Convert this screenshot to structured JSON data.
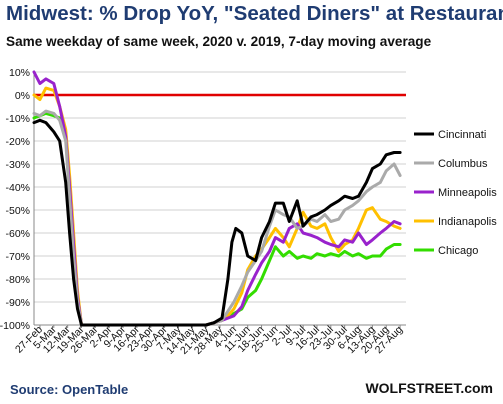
{
  "title": "Midwest: % Drop YoY, \"Seated Diners\" at Restaurants",
  "subtitle": "Same weekday of same week, 2020 v. 2019, 7-day moving average",
  "source": "Source: OpenTable",
  "brand": "WOLFSTREET.com",
  "chart_data": {
    "type": "line",
    "ylim": [
      -100,
      10
    ],
    "yticks": [
      "10%",
      "0%",
      "-10%",
      "-20%",
      "-30%",
      "-40%",
      "-50%",
      "-60%",
      "-70%",
      "-80%",
      "-90%",
      "-100%"
    ],
    "ytick_values": [
      10,
      0,
      -10,
      -20,
      -30,
      -40,
      -50,
      -60,
      -70,
      -80,
      -90,
      -100
    ],
    "xrange": [
      "2020-02-24",
      "2020-08-30"
    ],
    "xticks": [
      "27-Feb",
      "5-Mar",
      "12-Mar",
      "19-Mar",
      "26-Mar",
      "2-Apr",
      "9-Apr",
      "16-Apr",
      "23-Apr",
      "30-Apr",
      "7-May",
      "14-May",
      "21-May",
      "28-May",
      "4-Jun",
      "11-Jun",
      "18-Jun",
      "25-Jun",
      "2-Jul",
      "9-Jul",
      "16-Jul",
      "23-Jul",
      "30-Jul",
      "6-Aug",
      "13-Aug",
      "20-Aug",
      "27-Aug"
    ],
    "xtick_dates": [
      "2020-02-27",
      "2020-03-05",
      "2020-03-12",
      "2020-03-19",
      "2020-03-26",
      "2020-04-02",
      "2020-04-09",
      "2020-04-16",
      "2020-04-23",
      "2020-04-30",
      "2020-05-07",
      "2020-05-14",
      "2020-05-21",
      "2020-05-28",
      "2020-06-04",
      "2020-06-11",
      "2020-06-18",
      "2020-06-25",
      "2020-07-02",
      "2020-07-09",
      "2020-07-16",
      "2020-07-23",
      "2020-07-30",
      "2020-08-06",
      "2020-08-13",
      "2020-08-20",
      "2020-08-27"
    ],
    "reference_line": {
      "y": 0,
      "color": "#e00000"
    },
    "grid": "horizontal",
    "legend_position": "right",
    "series": [
      {
        "name": "Chicago",
        "color": "#33dd00",
        "points": [
          [
            "2020-02-24",
            -10
          ],
          [
            "2020-02-27",
            -9
          ],
          [
            "2020-03-01",
            -8
          ],
          [
            "2020-03-05",
            -9
          ],
          [
            "2020-03-08",
            -10
          ],
          [
            "2020-03-11",
            -18
          ],
          [
            "2020-03-13",
            -40
          ],
          [
            "2020-03-15",
            -65
          ],
          [
            "2020-03-17",
            -88
          ],
          [
            "2020-03-19",
            -100
          ],
          [
            "2020-05-21",
            -100
          ],
          [
            "2020-05-25",
            -99
          ],
          [
            "2020-05-29",
            -98
          ],
          [
            "2020-06-01",
            -96
          ],
          [
            "2020-06-04",
            -95
          ],
          [
            "2020-06-08",
            -93
          ],
          [
            "2020-06-11",
            -88
          ],
          [
            "2020-06-15",
            -85
          ],
          [
            "2020-06-18",
            -80
          ],
          [
            "2020-06-22",
            -72
          ],
          [
            "2020-06-25",
            -66
          ],
          [
            "2020-06-29",
            -70
          ],
          [
            "2020-07-02",
            -68
          ],
          [
            "2020-07-06",
            -71
          ],
          [
            "2020-07-09",
            -70
          ],
          [
            "2020-07-13",
            -71
          ],
          [
            "2020-07-16",
            -69
          ],
          [
            "2020-07-20",
            -70
          ],
          [
            "2020-07-23",
            -69
          ],
          [
            "2020-07-27",
            -70
          ],
          [
            "2020-07-30",
            -68
          ],
          [
            "2020-08-03",
            -70
          ],
          [
            "2020-08-06",
            -69
          ],
          [
            "2020-08-10",
            -71
          ],
          [
            "2020-08-13",
            -70
          ],
          [
            "2020-08-17",
            -70
          ],
          [
            "2020-08-20",
            -67
          ],
          [
            "2020-08-24",
            -65
          ],
          [
            "2020-08-27",
            -65
          ]
        ]
      },
      {
        "name": "Indianapolis",
        "color": "#ffc000",
        "points": [
          [
            "2020-02-24",
            0
          ],
          [
            "2020-02-27",
            -2
          ],
          [
            "2020-03-01",
            3
          ],
          [
            "2020-03-05",
            2
          ],
          [
            "2020-03-08",
            -5
          ],
          [
            "2020-03-11",
            -15
          ],
          [
            "2020-03-13",
            -35
          ],
          [
            "2020-03-15",
            -60
          ],
          [
            "2020-03-17",
            -85
          ],
          [
            "2020-03-19",
            -100
          ],
          [
            "2020-05-21",
            -100
          ],
          [
            "2020-05-25",
            -99
          ],
          [
            "2020-05-29",
            -98
          ],
          [
            "2020-06-01",
            -96
          ],
          [
            "2020-06-04",
            -93
          ],
          [
            "2020-06-08",
            -86
          ],
          [
            "2020-06-11",
            -76
          ],
          [
            "2020-06-15",
            -70
          ],
          [
            "2020-06-18",
            -67
          ],
          [
            "2020-06-22",
            -62
          ],
          [
            "2020-06-25",
            -58
          ],
          [
            "2020-06-29",
            -62
          ],
          [
            "2020-07-02",
            -66
          ],
          [
            "2020-07-06",
            -58
          ],
          [
            "2020-07-09",
            -51
          ],
          [
            "2020-07-13",
            -57
          ],
          [
            "2020-07-16",
            -58
          ],
          [
            "2020-07-20",
            -56
          ],
          [
            "2020-07-23",
            -62
          ],
          [
            "2020-07-27",
            -68
          ],
          [
            "2020-07-30",
            -65
          ],
          [
            "2020-08-03",
            -63
          ],
          [
            "2020-08-06",
            -58
          ],
          [
            "2020-08-10",
            -50
          ],
          [
            "2020-08-13",
            -49
          ],
          [
            "2020-08-17",
            -54
          ],
          [
            "2020-08-20",
            -55
          ],
          [
            "2020-08-24",
            -57
          ],
          [
            "2020-08-27",
            -58
          ]
        ]
      },
      {
        "name": "Minneapolis",
        "color": "#9922cc",
        "points": [
          [
            "2020-02-24",
            10
          ],
          [
            "2020-02-27",
            5
          ],
          [
            "2020-03-01",
            7
          ],
          [
            "2020-03-05",
            5
          ],
          [
            "2020-03-08",
            -5
          ],
          [
            "2020-03-11",
            -18
          ],
          [
            "2020-03-13",
            -40
          ],
          [
            "2020-03-15",
            -65
          ],
          [
            "2020-03-17",
            -88
          ],
          [
            "2020-03-19",
            -100
          ],
          [
            "2020-05-21",
            -100
          ],
          [
            "2020-05-25",
            -99
          ],
          [
            "2020-05-29",
            -98
          ],
          [
            "2020-06-01",
            -97
          ],
          [
            "2020-06-04",
            -96
          ],
          [
            "2020-06-08",
            -92
          ],
          [
            "2020-06-11",
            -85
          ],
          [
            "2020-06-15",
            -78
          ],
          [
            "2020-06-18",
            -73
          ],
          [
            "2020-06-22",
            -68
          ],
          [
            "2020-06-25",
            -62
          ],
          [
            "2020-06-29",
            -64
          ],
          [
            "2020-07-02",
            -58
          ],
          [
            "2020-07-06",
            -56
          ],
          [
            "2020-07-09",
            -60
          ],
          [
            "2020-07-13",
            -61
          ],
          [
            "2020-07-16",
            -62
          ],
          [
            "2020-07-20",
            -64
          ],
          [
            "2020-07-23",
            -65
          ],
          [
            "2020-07-27",
            -66
          ],
          [
            "2020-07-30",
            -63
          ],
          [
            "2020-08-03",
            -64
          ],
          [
            "2020-08-06",
            -60
          ],
          [
            "2020-08-10",
            -65
          ],
          [
            "2020-08-13",
            -63
          ],
          [
            "2020-08-17",
            -60
          ],
          [
            "2020-08-20",
            -58
          ],
          [
            "2020-08-24",
            -55
          ],
          [
            "2020-08-27",
            -56
          ]
        ]
      },
      {
        "name": "Columbus",
        "color": "#aaaaaa",
        "points": [
          [
            "2020-02-24",
            -8
          ],
          [
            "2020-02-27",
            -9
          ],
          [
            "2020-03-01",
            -7
          ],
          [
            "2020-03-05",
            -8
          ],
          [
            "2020-03-08",
            -11
          ],
          [
            "2020-03-11",
            -20
          ],
          [
            "2020-03-13",
            -45
          ],
          [
            "2020-03-15",
            -70
          ],
          [
            "2020-03-17",
            -90
          ],
          [
            "2020-03-19",
            -100
          ],
          [
            "2020-05-21",
            -100
          ],
          [
            "2020-05-25",
            -99
          ],
          [
            "2020-05-29",
            -98
          ],
          [
            "2020-06-01",
            -94
          ],
          [
            "2020-06-04",
            -90
          ],
          [
            "2020-06-08",
            -83
          ],
          [
            "2020-06-11",
            -77
          ],
          [
            "2020-06-15",
            -72
          ],
          [
            "2020-06-18",
            -68
          ],
          [
            "2020-06-22",
            -57
          ],
          [
            "2020-06-25",
            -50
          ],
          [
            "2020-06-29",
            -52
          ],
          [
            "2020-07-02",
            -53
          ],
          [
            "2020-07-06",
            -58
          ],
          [
            "2020-07-09",
            -57
          ],
          [
            "2020-07-13",
            -54
          ],
          [
            "2020-07-16",
            -55
          ],
          [
            "2020-07-20",
            -52
          ],
          [
            "2020-07-23",
            -55
          ],
          [
            "2020-07-27",
            -54
          ],
          [
            "2020-07-30",
            -50
          ],
          [
            "2020-08-03",
            -48
          ],
          [
            "2020-08-06",
            -46
          ],
          [
            "2020-08-10",
            -42
          ],
          [
            "2020-08-13",
            -40
          ],
          [
            "2020-08-17",
            -38
          ],
          [
            "2020-08-20",
            -33
          ],
          [
            "2020-08-24",
            -30
          ],
          [
            "2020-08-27",
            -35
          ]
        ]
      },
      {
        "name": "Cincinnati",
        "color": "#000000",
        "points": [
          [
            "2020-02-24",
            -12
          ],
          [
            "2020-02-27",
            -11
          ],
          [
            "2020-03-01",
            -12
          ],
          [
            "2020-03-05",
            -16
          ],
          [
            "2020-03-08",
            -20
          ],
          [
            "2020-03-11",
            -38
          ],
          [
            "2020-03-13",
            -60
          ],
          [
            "2020-03-15",
            -80
          ],
          [
            "2020-03-17",
            -93
          ],
          [
            "2020-03-19",
            -100
          ],
          [
            "2020-05-21",
            -100
          ],
          [
            "2020-05-25",
            -99
          ],
          [
            "2020-05-29",
            -97
          ],
          [
            "2020-06-01",
            -80
          ],
          [
            "2020-06-03",
            -64
          ],
          [
            "2020-06-05",
            -58
          ],
          [
            "2020-06-08",
            -60
          ],
          [
            "2020-06-11",
            -70
          ],
          [
            "2020-06-15",
            -72
          ],
          [
            "2020-06-18",
            -62
          ],
          [
            "2020-06-22",
            -55
          ],
          [
            "2020-06-25",
            -47
          ],
          [
            "2020-06-29",
            -47
          ],
          [
            "2020-07-02",
            -55
          ],
          [
            "2020-07-06",
            -46
          ],
          [
            "2020-07-09",
            -57
          ],
          [
            "2020-07-13",
            -53
          ],
          [
            "2020-07-16",
            -52
          ],
          [
            "2020-07-20",
            -50
          ],
          [
            "2020-07-23",
            -48
          ],
          [
            "2020-07-27",
            -46
          ],
          [
            "2020-07-30",
            -44
          ],
          [
            "2020-08-03",
            -45
          ],
          [
            "2020-08-06",
            -44
          ],
          [
            "2020-08-10",
            -38
          ],
          [
            "2020-08-13",
            -32
          ],
          [
            "2020-08-17",
            -30
          ],
          [
            "2020-08-20",
            -26
          ],
          [
            "2020-08-24",
            -25
          ],
          [
            "2020-08-27",
            -25
          ]
        ]
      }
    ],
    "legend": [
      {
        "name": "Cincinnati",
        "color": "#000000"
      },
      {
        "name": "Columbus",
        "color": "#aaaaaa"
      },
      {
        "name": "Minneapolis",
        "color": "#9922cc"
      },
      {
        "name": "Indianapolis",
        "color": "#ffc000"
      },
      {
        "name": "Chicago",
        "color": "#33dd00"
      }
    ]
  }
}
